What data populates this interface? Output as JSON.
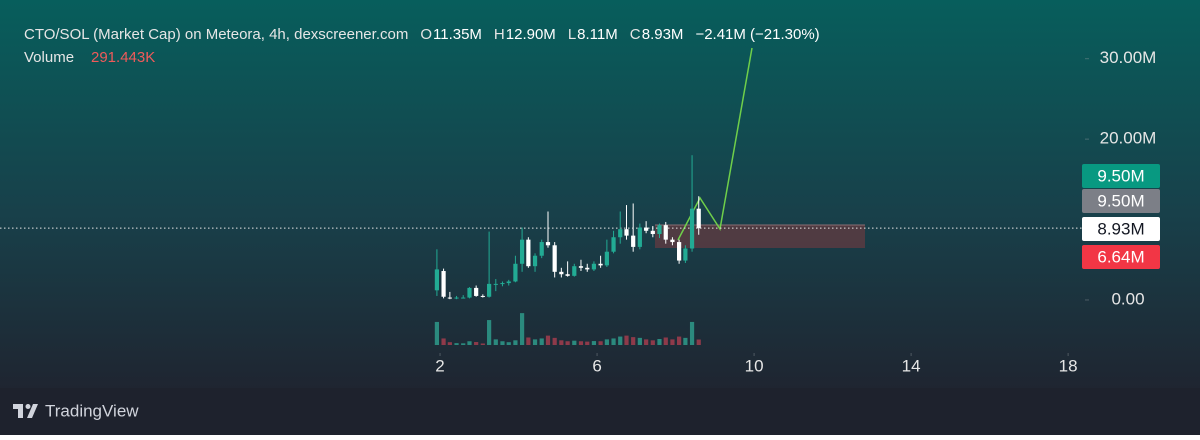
{
  "chart_data": {
    "type": "candlestick",
    "title": "CTO/SOL (Market Cap) on Meteora, 4h, dexscreener.com",
    "ohlc": [
      {
        "key": "O",
        "label": "11.35M"
      },
      {
        "key": "H",
        "label": "12.90M"
      },
      {
        "key": "L",
        "label": "8.11M"
      },
      {
        "key": "C",
        "label": "8.93M"
      }
    ],
    "change": "−2.41M (−21.30%)",
    "volume_name": "Volume",
    "volume_label": "291.443K",
    "x": [
      1.92,
      2.09,
      2.25,
      2.42,
      2.59,
      2.75,
      2.92,
      3.09,
      3.25,
      3.42,
      3.59,
      3.75,
      3.92,
      4.09,
      4.25,
      4.42,
      4.59,
      4.75,
      4.92,
      5.09,
      5.25,
      5.42,
      5.59,
      5.75,
      5.92,
      6.09,
      6.25,
      6.42,
      6.59,
      6.75,
      6.92,
      7.09,
      7.25,
      7.42,
      7.59,
      7.75,
      7.92,
      8.09,
      8.25,
      8.42,
      8.59
    ],
    "open": [
      1.2,
      3.6,
      0.3,
      0.2,
      0.3,
      0.3,
      1.5,
      0.5,
      0.4,
      2.0,
      2.0,
      2.1,
      2.3,
      4.5,
      7.5,
      4.2,
      5.5,
      7.2,
      6.8,
      3.5,
      3.2,
      3.0,
      4.2,
      4.0,
      3.8,
      4.5,
      4.3,
      6.0,
      7.8,
      8.8,
      8.0,
      6.6,
      9.0,
      8.6,
      8.2,
      9.3,
      7.5,
      7.2,
      4.9,
      6.4,
      11.35
    ],
    "high": [
      6.3,
      3.9,
      1.0,
      0.5,
      0.6,
      1.6,
      1.8,
      0.7,
      8.5,
      2.6,
      2.3,
      2.5,
      5.5,
      9.0,
      7.8,
      5.8,
      7.5,
      11.0,
      7.2,
      4.0,
      4.8,
      4.5,
      5.0,
      4.5,
      4.8,
      5.5,
      7.5,
      8.6,
      11.0,
      11.8,
      12.0,
      9.5,
      9.8,
      9.2,
      9.5,
      9.7,
      7.8,
      7.5,
      6.8,
      18.0,
      12.9
    ],
    "low": [
      0.5,
      0.2,
      0.1,
      0.1,
      0.2,
      0.2,
      0.4,
      0.3,
      0.3,
      1.1,
      1.7,
      1.8,
      2.2,
      3.5,
      4.0,
      3.5,
      5.2,
      6.5,
      2.8,
      2.8,
      2.9,
      2.9,
      3.6,
      3.5,
      3.6,
      4.0,
      4.1,
      5.8,
      7.0,
      7.5,
      6.0,
      6.3,
      8.3,
      7.8,
      7.7,
      7.0,
      6.8,
      4.5,
      4.6,
      6.0,
      8.11
    ],
    "close": [
      3.8,
      0.4,
      0.2,
      0.3,
      0.3,
      1.5,
      0.5,
      0.4,
      2.0,
      2.0,
      2.1,
      2.3,
      4.5,
      7.5,
      4.2,
      5.5,
      7.2,
      6.8,
      3.5,
      3.2,
      3.0,
      4.2,
      4.0,
      3.8,
      4.5,
      4.3,
      6.0,
      7.8,
      8.8,
      8.0,
      6.6,
      9.0,
      8.6,
      8.2,
      9.3,
      7.5,
      7.2,
      4.9,
      6.4,
      11.35,
      8.93
    ],
    "up_color": "#22ab94",
    "down_color": "#ffffff",
    "volume": {
      "values": [
        1230,
        350,
        150,
        100,
        90,
        200,
        160,
        80,
        1330,
        300,
        200,
        150,
        250,
        1700,
        400,
        300,
        350,
        500,
        380,
        250,
        200,
        230,
        200,
        180,
        210,
        200,
        300,
        350,
        450,
        500,
        420,
        380,
        300,
        250,
        320,
        400,
        300,
        450,
        380,
        1230,
        291.443
      ],
      "up_color": "#2b8a7e",
      "down_color": "#8e3a4a",
      "ylim": [
        0,
        2400
      ]
    },
    "xlim": [
      -9.21,
      18.43
    ],
    "xticks": [
      2,
      6,
      10,
      14,
      18
    ],
    "ylim": [
      -5.6,
      37.3
    ],
    "yticks": [
      {
        "value": 0,
        "label": "0.00"
      },
      {
        "value": 20,
        "label": "20.00M"
      },
      {
        "value": 30,
        "label": "30.00M"
      }
    ],
    "price_labels": [
      {
        "value": 9.5,
        "label": "9.50M",
        "color": "#089981"
      },
      {
        "value": 9.5,
        "label": "9.50M",
        "color": "#7c7f87"
      },
      {
        "value": 8.93,
        "label": "8.93M",
        "color": "#ffffff"
      },
      {
        "value": 6.64,
        "label": "6.64M",
        "color": "#f23645"
      }
    ],
    "brand": "TradingView"
  }
}
